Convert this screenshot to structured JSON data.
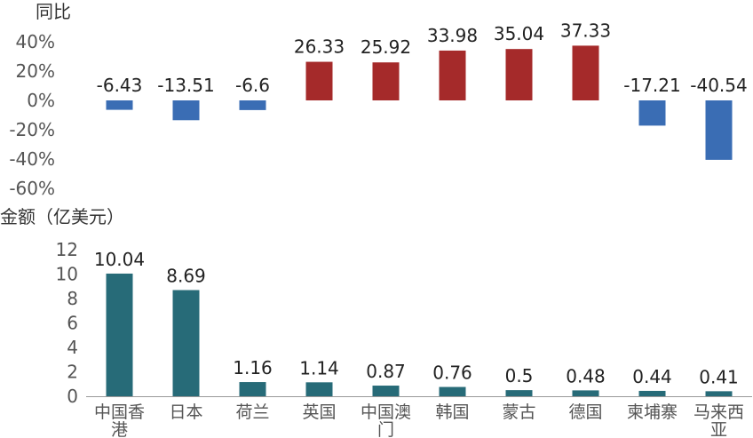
{
  "chart_data": [
    {
      "type": "bar",
      "ylabel": "同比",
      "categories": [
        "中国香港",
        "日本",
        "荷兰",
        "英国",
        "中国澳门",
        "韩国",
        "蒙古",
        "德国",
        "柬埔寨",
        "马来西亚"
      ],
      "values": [
        -6.43,
        -13.51,
        -6.6,
        26.33,
        25.92,
        33.98,
        35.04,
        37.33,
        -17.21,
        -40.54
      ],
      "data_labels": [
        "-6.43",
        "-13.51",
        "-6.6",
        "26.33",
        "25.92",
        "33.98",
        "35.04",
        "37.33",
        "-17.21",
        "-40.54"
      ],
      "ylim": [
        -60,
        40
      ],
      "yticks": [
        "40%",
        "20%",
        "0%",
        "-20%",
        "-40%",
        "-60%"
      ],
      "ytick_values": [
        40,
        20,
        0,
        -20,
        -40,
        -60
      ],
      "colors": {
        "positive": "#a52a2a",
        "negative": "#3a6db4"
      },
      "grid": false
    },
    {
      "type": "bar",
      "ylabel": "金额（亿美元）",
      "categories": [
        "中国香港",
        "日本",
        "荷兰",
        "英国",
        "中国澳门",
        "韩国",
        "蒙古",
        "德国",
        "柬埔寨",
        "马来西亚"
      ],
      "values": [
        10.04,
        8.69,
        1.16,
        1.14,
        0.87,
        0.76,
        0.5,
        0.48,
        0.44,
        0.41
      ],
      "data_labels": [
        "10.04",
        "8.69",
        "1.16",
        "1.14",
        "0.87",
        "0.76",
        "0.5",
        "0.48",
        "0.44",
        "0.41"
      ],
      "ylim": [
        0,
        12
      ],
      "yticks": [
        "12",
        "10",
        "8",
        "6",
        "4",
        "2",
        "0"
      ],
      "ytick_values": [
        12,
        10,
        8,
        6,
        4,
        2,
        0
      ],
      "xtick_lines": [
        [
          "中国香",
          "港"
        ],
        [
          "日本"
        ],
        [
          "荷兰"
        ],
        [
          "英国"
        ],
        [
          "中国澳",
          "门"
        ],
        [
          "韩国"
        ],
        [
          "蒙古"
        ],
        [
          "德国"
        ],
        [
          "柬埔寨"
        ],
        [
          "马来西",
          "亚"
        ]
      ],
      "colors": {
        "bar": "#276b78"
      },
      "grid": false
    }
  ]
}
